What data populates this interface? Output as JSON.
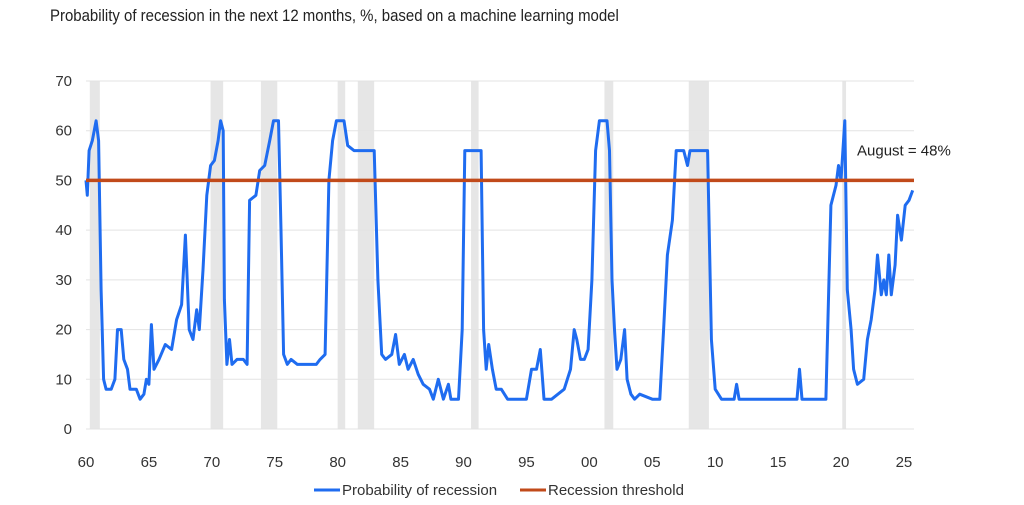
{
  "chart_data": {
    "type": "line",
    "title": "Probability of recession in the next 12 months, %, based on a machine learning model",
    "xlabel": "",
    "ylabel": "",
    "xlim": [
      1960,
      2025.8
    ],
    "ylim": [
      0,
      70
    ],
    "x_ticks": [
      1960,
      1965,
      1970,
      1975,
      1980,
      1985,
      1990,
      1995,
      2000,
      2005,
      2010,
      2015,
      2020,
      2025
    ],
    "x_tick_labels": [
      "60",
      "65",
      "70",
      "75",
      "80",
      "85",
      "90",
      "95",
      "00",
      "05",
      "10",
      "15",
      "20",
      "25"
    ],
    "y_ticks": [
      0,
      10,
      20,
      30,
      40,
      50,
      60,
      70
    ],
    "y_tick_labels": [
      "0",
      "10",
      "20",
      "30",
      "40",
      "50",
      "60",
      "70"
    ],
    "grid": "horizontal",
    "legend_position": "bottom",
    "recession_shading": [
      [
        1960.3,
        1961.1
      ],
      [
        1969.9,
        1970.9
      ],
      [
        1973.9,
        1975.2
      ],
      [
        1980.0,
        1980.6
      ],
      [
        1981.6,
        1982.9
      ],
      [
        1990.6,
        1991.2
      ],
      [
        2001.2,
        2001.9
      ],
      [
        2007.9,
        2009.5
      ],
      [
        2020.1,
        2020.4
      ]
    ],
    "series": [
      {
        "name": "Probability of recession",
        "color": "#1f6cf0",
        "points": [
          [
            1960.0,
            50
          ],
          [
            1960.1,
            47
          ],
          [
            1960.25,
            56
          ],
          [
            1960.5,
            58
          ],
          [
            1960.8,
            62
          ],
          [
            1961.0,
            58
          ],
          [
            1961.2,
            28
          ],
          [
            1961.4,
            10
          ],
          [
            1961.6,
            8
          ],
          [
            1962.0,
            8
          ],
          [
            1962.3,
            10
          ],
          [
            1962.5,
            20
          ],
          [
            1962.8,
            20
          ],
          [
            1963.0,
            14
          ],
          [
            1963.3,
            12
          ],
          [
            1963.5,
            8
          ],
          [
            1964.0,
            8
          ],
          [
            1964.3,
            6
          ],
          [
            1964.6,
            7
          ],
          [
            1964.8,
            10
          ],
          [
            1965.0,
            9
          ],
          [
            1965.2,
            21
          ],
          [
            1965.4,
            12
          ],
          [
            1965.8,
            14
          ],
          [
            1966.3,
            17
          ],
          [
            1966.8,
            16
          ],
          [
            1967.2,
            22
          ],
          [
            1967.6,
            25
          ],
          [
            1967.9,
            39
          ],
          [
            1968.2,
            20
          ],
          [
            1968.5,
            18
          ],
          [
            1968.8,
            24
          ],
          [
            1969.0,
            20
          ],
          [
            1969.3,
            32
          ],
          [
            1969.6,
            47
          ],
          [
            1969.9,
            53
          ],
          [
            1970.2,
            54
          ],
          [
            1970.5,
            58
          ],
          [
            1970.7,
            62
          ],
          [
            1970.9,
            60
          ],
          [
            1971.0,
            26
          ],
          [
            1971.2,
            13
          ],
          [
            1971.4,
            18
          ],
          [
            1971.6,
            13
          ],
          [
            1972.0,
            14
          ],
          [
            1972.5,
            14
          ],
          [
            1972.8,
            13
          ],
          [
            1973.0,
            46
          ],
          [
            1973.5,
            47
          ],
          [
            1973.8,
            52
          ],
          [
            1974.2,
            53
          ],
          [
            1974.6,
            58
          ],
          [
            1974.9,
            62
          ],
          [
            1975.3,
            62
          ],
          [
            1975.5,
            40
          ],
          [
            1975.7,
            15
          ],
          [
            1976.0,
            13
          ],
          [
            1976.3,
            14
          ],
          [
            1976.8,
            13
          ],
          [
            1977.5,
            13
          ],
          [
            1978.3,
            13
          ],
          [
            1978.6,
            14
          ],
          [
            1979.0,
            15
          ],
          [
            1979.3,
            50
          ],
          [
            1979.6,
            58
          ],
          [
            1979.9,
            62
          ],
          [
            1980.5,
            62
          ],
          [
            1980.8,
            57
          ],
          [
            1981.3,
            56
          ],
          [
            1982.5,
            56
          ],
          [
            1982.9,
            56
          ],
          [
            1983.2,
            30
          ],
          [
            1983.5,
            15
          ],
          [
            1983.8,
            14
          ],
          [
            1984.3,
            15
          ],
          [
            1984.6,
            19
          ],
          [
            1984.9,
            13
          ],
          [
            1985.3,
            15
          ],
          [
            1985.6,
            12
          ],
          [
            1986.0,
            14
          ],
          [
            1986.4,
            11
          ],
          [
            1986.8,
            9
          ],
          [
            1987.3,
            8
          ],
          [
            1987.6,
            6
          ],
          [
            1988.0,
            10
          ],
          [
            1988.4,
            6
          ],
          [
            1988.8,
            9
          ],
          [
            1989.0,
            6
          ],
          [
            1989.6,
            6
          ],
          [
            1989.9,
            20
          ],
          [
            1990.1,
            56
          ],
          [
            1991.0,
            56
          ],
          [
            1991.4,
            56
          ],
          [
            1991.6,
            20
          ],
          [
            1991.8,
            12
          ],
          [
            1992.0,
            17
          ],
          [
            1992.3,
            12
          ],
          [
            1992.6,
            8
          ],
          [
            1993.0,
            8
          ],
          [
            1993.5,
            6
          ],
          [
            1994.0,
            6
          ],
          [
            1995.0,
            6
          ],
          [
            1995.4,
            12
          ],
          [
            1995.8,
            12
          ],
          [
            1996.1,
            16
          ],
          [
            1996.4,
            6
          ],
          [
            1997.0,
            6
          ],
          [
            1998.0,
            8
          ],
          [
            1998.5,
            12
          ],
          [
            1998.8,
            20
          ],
          [
            1999.0,
            18
          ],
          [
            1999.3,
            14
          ],
          [
            1999.6,
            14
          ],
          [
            1999.9,
            16
          ],
          [
            2000.2,
            30
          ],
          [
            2000.5,
            56
          ],
          [
            2000.8,
            62
          ],
          [
            2001.4,
            62
          ],
          [
            2001.6,
            56
          ],
          [
            2001.8,
            30
          ],
          [
            2002.0,
            20
          ],
          [
            2002.2,
            12
          ],
          [
            2002.5,
            14
          ],
          [
            2002.8,
            20
          ],
          [
            2003.0,
            10
          ],
          [
            2003.3,
            7
          ],
          [
            2003.6,
            6
          ],
          [
            2004.0,
            7
          ],
          [
            2005.0,
            6
          ],
          [
            2005.6,
            6
          ],
          [
            2005.9,
            20
          ],
          [
            2006.2,
            35
          ],
          [
            2006.6,
            42
          ],
          [
            2006.9,
            56
          ],
          [
            2007.5,
            56
          ],
          [
            2007.8,
            53
          ],
          [
            2008.0,
            56
          ],
          [
            2009.0,
            56
          ],
          [
            2009.4,
            56
          ],
          [
            2009.7,
            18
          ],
          [
            2010.0,
            8
          ],
          [
            2010.5,
            6
          ],
          [
            2011.5,
            6
          ],
          [
            2011.7,
            9
          ],
          [
            2011.9,
            6
          ],
          [
            2013.0,
            6
          ],
          [
            2014.0,
            6
          ],
          [
            2015.0,
            6
          ],
          [
            2016.0,
            6
          ],
          [
            2016.5,
            6
          ],
          [
            2016.7,
            12
          ],
          [
            2016.9,
            6
          ],
          [
            2018.0,
            6
          ],
          [
            2018.8,
            6
          ],
          [
            2019.2,
            45
          ],
          [
            2019.6,
            49
          ],
          [
            2019.8,
            53
          ],
          [
            2020.0,
            50
          ],
          [
            2020.3,
            62
          ],
          [
            2020.5,
            28
          ],
          [
            2020.8,
            20
          ],
          [
            2021.0,
            12
          ],
          [
            2021.3,
            9
          ],
          [
            2021.8,
            10
          ],
          [
            2022.1,
            18
          ],
          [
            2022.4,
            22
          ],
          [
            2022.7,
            28
          ],
          [
            2022.9,
            35
          ],
          [
            2023.2,
            27
          ],
          [
            2023.4,
            30
          ],
          [
            2023.6,
            27
          ],
          [
            2023.8,
            35
          ],
          [
            2024.0,
            27
          ],
          [
            2024.3,
            33
          ],
          [
            2024.5,
            43
          ],
          [
            2024.8,
            38
          ],
          [
            2025.1,
            45
          ],
          [
            2025.4,
            46
          ],
          [
            2025.7,
            48
          ]
        ]
      },
      {
        "name": "Recession threshold",
        "color": "#c14a1a",
        "points": [
          [
            1960.0,
            50
          ],
          [
            2025.8,
            50
          ]
        ]
      }
    ],
    "annotations": [
      {
        "text": "August = 48%",
        "x": 2025.0,
        "y": 55
      }
    ]
  }
}
